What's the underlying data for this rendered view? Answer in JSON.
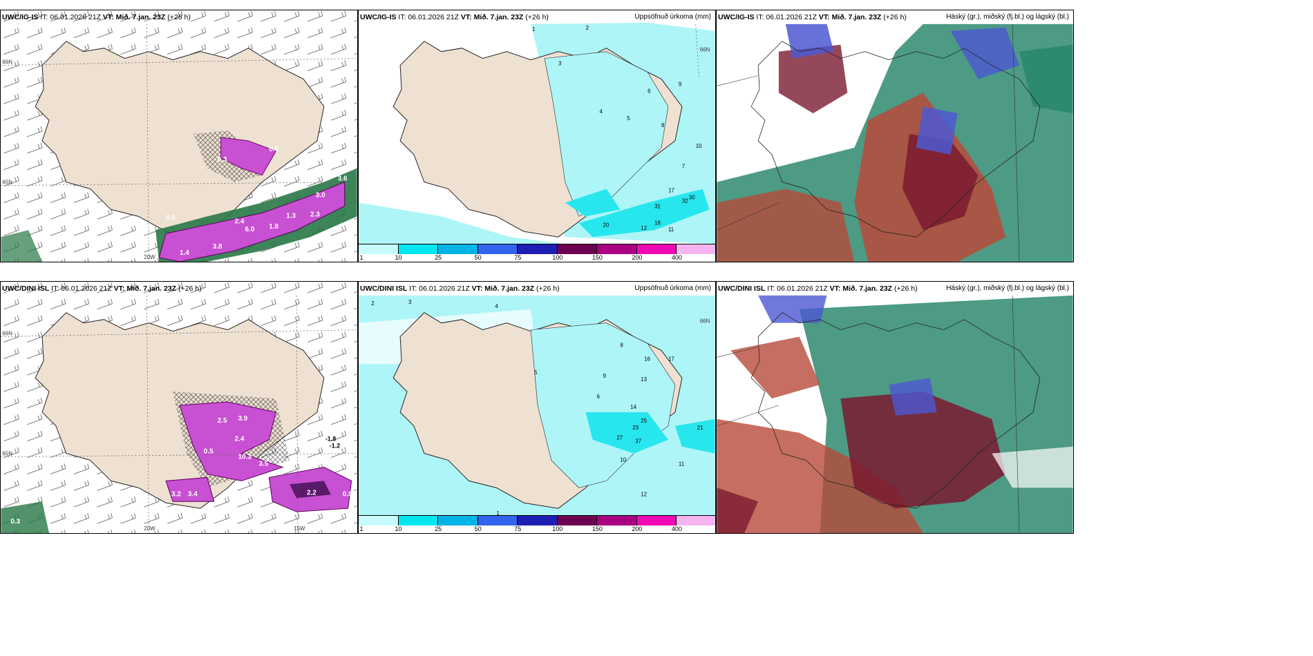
{
  "panels": [
    {
      "id": "p1",
      "header": {
        "model": "UWC/IG-IS",
        "it": " IT: 06.01.2026 21Z ",
        "vt_label": "VT: ",
        "vt": "Mið. 7.jan. 23Z",
        "lead": " (+26 h)"
      },
      "field": "",
      "labels": [
        "0.3",
        "0.5",
        "2.4",
        "6.0",
        "1.4",
        "3.8",
        "1.3",
        "2.3",
        "3.6",
        "1.8",
        "3.0",
        "0.5"
      ],
      "axes": [
        "66N",
        "65N",
        "20W"
      ]
    },
    {
      "id": "p2",
      "header": {
        "model": "UWC/IG-IS",
        "it": " IT: 06.01.2026 21Z ",
        "vt_label": "VT: ",
        "vt": "Mið. 7.jan. 23Z",
        "lead": " (+26 h)"
      },
      "field": "Uppsöfnuð úrkoma (mm)",
      "labels": [
        "1",
        "2",
        "3",
        "4",
        "5",
        "6",
        "8",
        "9",
        "10",
        "17",
        "32",
        "30",
        "31",
        "18",
        "20",
        "12",
        "11",
        "7"
      ],
      "axes": [
        "66N"
      ]
    },
    {
      "id": "p3",
      "header": {
        "model": "UWC/IG-IS",
        "it": " IT: 06.01.2026 21Z ",
        "vt_label": "VT: ",
        "vt": "Mið. 7.jan. 23Z",
        "lead": " (+26 h)"
      },
      "field": "Háský (gr.), miðský (fj.bl.) og lágský (bl.)",
      "labels": [],
      "axes": []
    },
    {
      "id": "p4",
      "header": {
        "model": "UWC/DINI ISL",
        "it": " IT: 06.01.2026 21Z ",
        "vt_label": "VT: ",
        "vt": "Mið. 7.jan. 23Z",
        "lead": " (+26 h)"
      },
      "field": "",
      "labels": [
        "2.5",
        "3.9",
        "2.4",
        "0.5",
        "10.3",
        "3.5",
        "3.2",
        "3.4",
        "-1.8",
        "-1.2",
        "0.8",
        "0.3",
        "2.2"
      ],
      "axes": [
        "66N",
        "65N",
        "20W",
        "15W"
      ]
    },
    {
      "id": "p5",
      "header": {
        "model": "UWC/DINI ISL",
        "it": " IT: 06.01.2026 21Z ",
        "vt_label": "VT: ",
        "vt": "Mið. 7.jan. 23Z",
        "lead": " (+26 h)"
      },
      "field": "Uppsöfnuð úrkoma (mm)",
      "labels": [
        "2",
        "3",
        "4",
        "5",
        "6",
        "8",
        "9",
        "13",
        "14",
        "16",
        "17",
        "21",
        "23",
        "25",
        "27",
        "37",
        "10",
        "11",
        "12",
        "1"
      ],
      "axes": [
        "66N"
      ]
    },
    {
      "id": "p6",
      "header": {
        "model": "UWC/DINI ISL",
        "it": " IT: 06.01.2026 21Z ",
        "vt_label": "VT: ",
        "vt": "Mið. 7.jan. 23Z",
        "lead": " (+26 h)"
      },
      "field": "Háský (gr.), miðský (fj.bl.) og lágský (bl.)",
      "labels": [],
      "axes": []
    }
  ],
  "legend": {
    "ticks": [
      "1",
      "10",
      "25",
      "50",
      "75",
      "100",
      "150",
      "200",
      "400"
    ],
    "colors": [
      "#c8fbfb",
      "#00e6f0",
      "#00b4e6",
      "#3264f0",
      "#1e1eb4",
      "#6e0050",
      "#aa0082",
      "#f00ab4",
      "#f5b4f0"
    ]
  },
  "colors": {
    "land": "#efe1d2",
    "precip_light": "#aef5f7",
    "precip_mid": "#28e6ee",
    "magenta": "#c850d2",
    "green": "#287846",
    "cloud_red": "#b84a3a",
    "cloud_teal": "#2e8a6e",
    "cloud_blue": "#4c58d2"
  }
}
